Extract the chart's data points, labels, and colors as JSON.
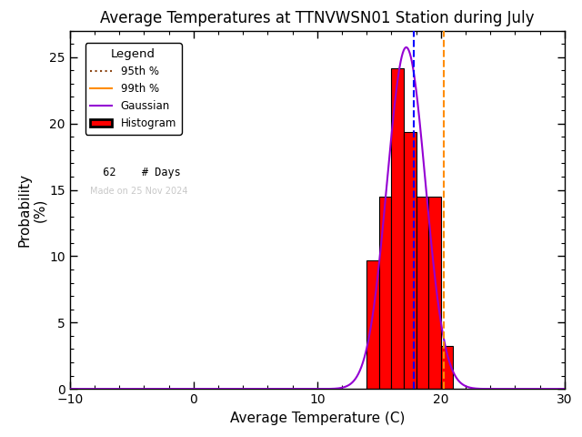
{
  "title": "Average Temperatures at TTNVWSN01 Station during July",
  "xlabel": "Average Temperature (C)",
  "ylabel": "Probability\n(%)",
  "xlim": [
    -10,
    30
  ],
  "ylim": [
    0,
    27
  ],
  "yticks": [
    0,
    5,
    10,
    15,
    20,
    25
  ],
  "xticks": [
    -10,
    0,
    10,
    20,
    30
  ],
  "n_days": 62,
  "made_on": "Made on 25 Nov 2024",
  "bin_edges": [
    14,
    15,
    16,
    17,
    18,
    19,
    20,
    21
  ],
  "bin_heights": [
    9.68,
    14.52,
    24.19,
    19.35,
    14.52,
    14.52,
    3.23
  ],
  "gauss_mean": 17.2,
  "gauss_std": 1.55,
  "percentile_95": 17.8,
  "percentile_99": 20.2,
  "hist_color": "#ff0000",
  "hist_edgecolor": "#000000",
  "gauss_color": "#9400d3",
  "p95_color": "#8B4513",
  "p99_color": "#ff8c00",
  "dashed_line_color": "#0000ff",
  "bg_color": "#ffffff",
  "title_fontsize": 12,
  "axis_fontsize": 11,
  "legend_title": "Legend",
  "watermark_color": "#c8c8c8",
  "watermark_fontsize": 7
}
